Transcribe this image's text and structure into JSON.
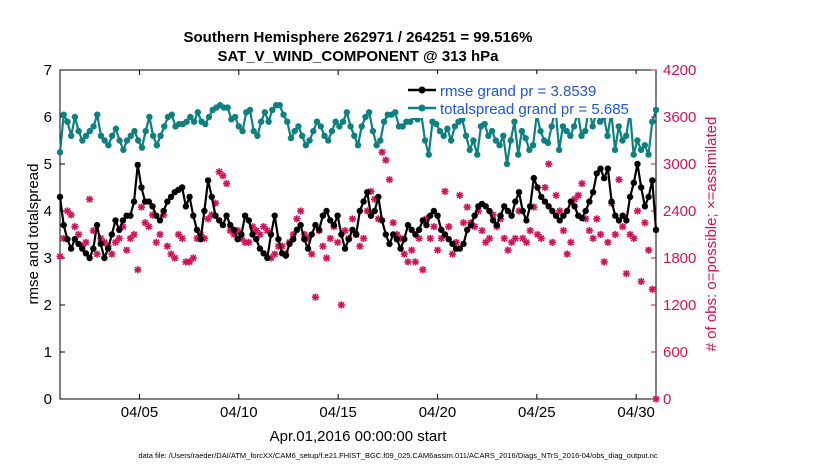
{
  "chart_data": {
    "type": "line",
    "title": "Southern Hemisphere 262971 / 264251 = 99.516%",
    "subtitle": "SAT_V_WIND_COMPONENT @ 313 hPa",
    "xlabel": "Apr.01,2016 00:00:00 start",
    "ylabel_left": "rmse and totalspread",
    "ylabel_right": "# of obs: o=possible; ×=assimilated",
    "footer": "data file: /Users/raeder/DAI/ATM_forcXX/CAM6_setup/f.e21.FHIST_BGC.f09_025.CAM6assim.011/ACARS_2016/Diags_NTrS_2016-04/obs_diag_output.nc",
    "xlim": [
      1.0,
      31.0
    ],
    "ylim_left": [
      0,
      7
    ],
    "ylim_right": [
      0,
      4200
    ],
    "x_ticks": [
      5,
      10,
      15,
      20,
      25,
      30
    ],
    "x_tick_labels": [
      "04/05",
      "04/10",
      "04/15",
      "04/20",
      "04/25",
      "04/30"
    ],
    "y_left_ticks": [
      "0",
      "1",
      "2",
      "3",
      "4",
      "5",
      "6",
      "7"
    ],
    "y_right_ticks": [
      "0",
      "600",
      "1200",
      "1800",
      "2400",
      "3000",
      "3600",
      "4200"
    ],
    "colors": {
      "rmse": "#000000",
      "spread": "#0e8080",
      "obs": "#d1135a",
      "legend_text": "#1f55d6"
    },
    "series": [
      {
        "name": "rmse grand pr = 3.8539",
        "axis": "left",
        "values": [
          4.3,
          3.7,
          3.4,
          3.2,
          3.4,
          3.3,
          3.2,
          3.1,
          3.0,
          3.2,
          3.7,
          3.3,
          3.0,
          3.2,
          3.5,
          3.8,
          3.6,
          3.8,
          3.9,
          3.9,
          4.2,
          4.98,
          4.5,
          4.2,
          4.2,
          4.1,
          3.9,
          3.8,
          4.0,
          4.2,
          4.3,
          4.4,
          4.45,
          4.5,
          4.1,
          4.3,
          3.9,
          3.6,
          3.4,
          4.0,
          4.65,
          4.3,
          3.9,
          3.8,
          3.7,
          3.9,
          3.7,
          3.6,
          3.4,
          3.5,
          3.9,
          3.8,
          3.5,
          3.4,
          3.2,
          3.1,
          3.0,
          3.5,
          3.9,
          3.4,
          3.1,
          3.05,
          3.3,
          3.4,
          3.6,
          3.7,
          3.4,
          3.2,
          3.5,
          3.7,
          3.6,
          3.9,
          4.0,
          3.8,
          3.7,
          3.9,
          3.5,
          3.2,
          3.4,
          3.6,
          3.5,
          4.0,
          4.2,
          4.4,
          3.9,
          4.0,
          4.3,
          3.8,
          3.5,
          3.3,
          3.5,
          3.4,
          3.2,
          3.4,
          3.7,
          3.6,
          3.5,
          3.6,
          3.8,
          3.7,
          3.9,
          4.0,
          3.9,
          3.6,
          3.5,
          3.4,
          3.3,
          3.2,
          3.2,
          3.3,
          3.6,
          3.7,
          3.9,
          4.1,
          4.15,
          4.1,
          4.0,
          3.8,
          3.7,
          3.9,
          4.1,
          4.0,
          3.9,
          4.2,
          4.4,
          4.0,
          3.8,
          4.1,
          4.7,
          4.5,
          4.3,
          4.2,
          4.1,
          4.0,
          3.9,
          3.8,
          3.9,
          4.0,
          4.2,
          4.1,
          3.9,
          3.85,
          4.0,
          4.2,
          4.4,
          4.8,
          4.9,
          4.7,
          4.9,
          4.2,
          3.9,
          3.8,
          3.9,
          3.8,
          4.3,
          4.6,
          5.0,
          4.5,
          4.1,
          4.3,
          4.65,
          3.6
        ]
      },
      {
        "name": "totalspread grand pr = 5.685",
        "axis": "left",
        "values": [
          5.25,
          6.05,
          5.9,
          5.6,
          6.0,
          5.7,
          5.5,
          5.6,
          5.7,
          5.8,
          6.05,
          5.6,
          5.5,
          5.4,
          5.6,
          5.75,
          5.5,
          5.3,
          5.5,
          5.6,
          5.7,
          5.5,
          5.35,
          5.7,
          6.0,
          5.6,
          5.4,
          5.6,
          5.8,
          6.0,
          6.05,
          5.8,
          5.85,
          5.85,
          5.9,
          6.0,
          5.9,
          6.1,
          5.9,
          5.85,
          6.0,
          6.15,
          6.2,
          6.25,
          6.2,
          6.2,
          5.95,
          6.0,
          5.8,
          5.7,
          6.1,
          6.15,
          5.7,
          5.6,
          5.9,
          6.1,
          5.9,
          6.15,
          6.25,
          6.25,
          6.05,
          5.9,
          5.55,
          5.7,
          5.8,
          5.6,
          5.4,
          5.5,
          5.7,
          5.9,
          5.8,
          5.6,
          5.5,
          5.7,
          5.9,
          5.8,
          5.9,
          6.1,
          5.8,
          5.6,
          5.4,
          5.8,
          6.0,
          6.1,
          5.7,
          5.4,
          5.5,
          5.9,
          6.05,
          6.05,
          6.1,
          5.8,
          5.8,
          5.9,
          5.9,
          6.0,
          5.95,
          6.05,
          5.5,
          5.2,
          5.9,
          5.85,
          5.7,
          5.6,
          5.75,
          5.5,
          5.8,
          5.9,
          5.95,
          5.6,
          5.3,
          5.5,
          5.2,
          5.8,
          5.85,
          5.6,
          5.7,
          5.5,
          5.4,
          5.6,
          5.0,
          5.5,
          5.9,
          5.2,
          5.7,
          5.55,
          5.3,
          5.4,
          6.05,
          5.7,
          5.5,
          5.45,
          5.8,
          6.2,
          5.3,
          5.8,
          5.7,
          5.6,
          5.8,
          6.1,
          5.6,
          5.7,
          6.2,
          5.8,
          6.1,
          5.9,
          6.0,
          5.6,
          6.1,
          5.3,
          5.8,
          5.5,
          5.6,
          6.1,
          5.2,
          5.5,
          5.3,
          5.4,
          5.2,
          5.9,
          6.15
        ]
      },
      {
        "name": "obs assimilated",
        "axis": "right",
        "values": [
          1820,
          2050,
          2400,
          2350,
          2200,
          2100,
          1950,
          2000,
          2550,
          2150,
          1850,
          2050,
          2000,
          1950,
          1850,
          2000,
          2050,
          2200,
          1900,
          2050,
          2100,
          1650,
          2450,
          2250,
          2200,
          2350,
          2000,
          2100,
          2350,
          1950,
          1850,
          1800,
          2100,
          2050,
          1750,
          1750,
          1800,
          2050,
          2100,
          2050,
          2300,
          2350,
          2500,
          2900,
          2850,
          2750,
          2150,
          2100,
          2150,
          2050,
          2000,
          2000,
          2200,
          2150,
          2100,
          2200,
          2150,
          1800,
          1850,
          1950,
          1950,
          1850,
          2000,
          2100,
          2300,
          2400,
          2100,
          2050,
          1850,
          1300,
          2150,
          1950,
          1800,
          2050,
          2200,
          2000,
          1200,
          2150,
          2050,
          2300,
          2100,
          1950,
          2050,
          2400,
          2650,
          2550,
          2300,
          3150,
          3050,
          2800,
          2250,
          2100,
          2050,
          1850,
          1750,
          1900,
          1750,
          2050,
          1650,
          2300,
          2050,
          2200,
          1900,
          2050,
          2650,
          2200,
          1850,
          2000,
          2600,
          2250,
          2450,
          2250,
          2200,
          2400,
          2150,
          2000,
          2050,
          2350,
          2200,
          2300,
          2050,
          1900,
          2000,
          2050,
          2400,
          2050,
          2000,
          2150,
          2450,
          2100,
          2050,
          2700,
          3000,
          2000,
          2600,
          2400,
          2150,
          1850,
          2000,
          2550,
          2600,
          2750,
          2300,
          2150,
          2050,
          2300,
          2100,
          1750,
          2000,
          2500,
          2100,
          2800,
          2200,
          1600,
          2100,
          2050,
          2400,
          1500,
          2250,
          1900,
          1400,
          0
        ]
      }
    ],
    "legend": [
      {
        "label": "rmse grand pr = 3.8539",
        "series": "rmse"
      },
      {
        "label": "totalspread grand pr = 5.685",
        "series": "totalspread"
      }
    ]
  }
}
